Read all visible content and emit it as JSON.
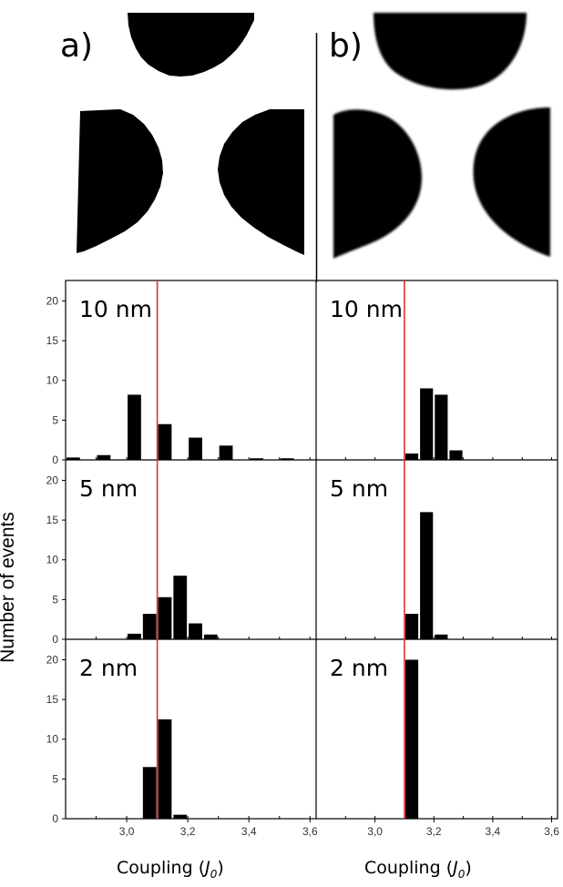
{
  "panels": [
    {
      "letter": "a)"
    },
    {
      "letter": "b)"
    }
  ],
  "y_axis_label": "Number of events",
  "x_axis_label": {
    "text": "Coupling (",
    "symbol": "J",
    "subscript": "0",
    "close": ")"
  },
  "reference_line": {
    "x": 3.1,
    "color": "#e03030"
  },
  "colors": {
    "bars": "#000000",
    "frame": "#000000"
  },
  "chart_data": [
    {
      "type": "bar",
      "panel": "a",
      "label": "10 nm",
      "ylim": [
        0,
        22
      ],
      "yticks": [
        0,
        5,
        10,
        15,
        20
      ],
      "xlim": [
        2.8,
        3.62
      ],
      "xticks": [],
      "bin_width": 0.05,
      "bin_starts": [
        2.8,
        2.9,
        3.0,
        3.1,
        3.2,
        3.3,
        3.4,
        3.5
      ],
      "values": [
        0.3,
        0.6,
        8.2,
        4.5,
        2.8,
        1.8,
        0.2,
        0.2
      ]
    },
    {
      "type": "bar",
      "panel": "a",
      "label": "5 nm",
      "ylim": [
        0,
        22
      ],
      "yticks": [
        0,
        5,
        10,
        15,
        20
      ],
      "xlim": [
        2.8,
        3.62
      ],
      "xticks": [],
      "bin_width": 0.05,
      "bin_starts": [
        3.0,
        3.05,
        3.1,
        3.15,
        3.2,
        3.25
      ],
      "values": [
        0.7,
        3.2,
        5.3,
        8.0,
        2.0,
        0.6
      ]
    },
    {
      "type": "bar",
      "panel": "a",
      "label": "2 nm",
      "ylim": [
        0,
        22
      ],
      "yticks": [
        0,
        5,
        10,
        15,
        20
      ],
      "xlim": [
        2.8,
        3.62
      ],
      "xticks": [
        "3,0",
        "3,2",
        "3,4",
        "3,6"
      ],
      "xtick_values": [
        3.0,
        3.2,
        3.4,
        3.6
      ],
      "bin_width": 0.05,
      "bin_starts": [
        3.05,
        3.1,
        3.15
      ],
      "values": [
        6.5,
        12.5,
        0.5
      ]
    },
    {
      "type": "bar",
      "panel": "b",
      "label": "10 nm",
      "ylim": [
        0,
        22
      ],
      "yticks": [],
      "xlim": [
        2.8,
        3.62
      ],
      "xticks": [],
      "bin_width": 0.05,
      "bin_starts": [
        3.1,
        3.15,
        3.2,
        3.25
      ],
      "values": [
        0.8,
        9.0,
        8.2,
        1.2
      ]
    },
    {
      "type": "bar",
      "panel": "b",
      "label": "5 nm",
      "ylim": [
        0,
        22
      ],
      "yticks": [],
      "xlim": [
        2.8,
        3.62
      ],
      "xticks": [],
      "bin_width": 0.05,
      "bin_starts": [
        3.1,
        3.15,
        3.2
      ],
      "values": [
        3.2,
        16.0,
        0.6
      ]
    },
    {
      "type": "bar",
      "panel": "b",
      "label": "2 nm",
      "ylim": [
        0,
        22
      ],
      "yticks": [],
      "xlim": [
        2.8,
        3.62
      ],
      "xticks": [
        "3,0",
        "3,2",
        "3,4",
        "3,6"
      ],
      "xtick_values": [
        3.0,
        3.2,
        3.4,
        3.6
      ],
      "bin_width": 0.05,
      "bin_starts": [
        3.1
      ],
      "values": [
        20.0
      ]
    }
  ]
}
